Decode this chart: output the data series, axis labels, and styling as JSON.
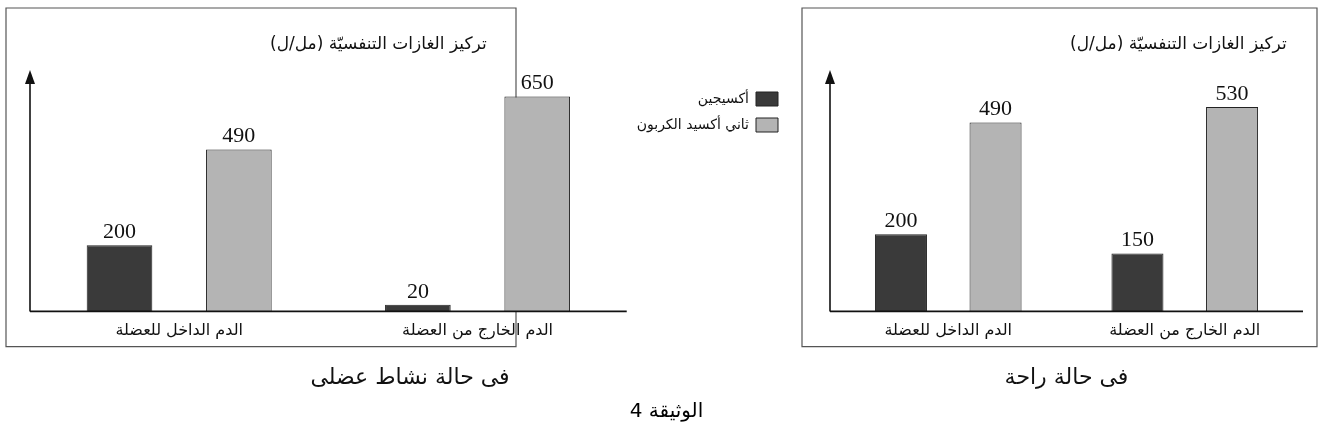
{
  "chart_data": [
    {
      "type": "bar",
      "title": "فى حالة نشاط عضلى",
      "ylabel": "تركيز الغازات التنفسيّة (مل/ل)",
      "categories": [
        "الدم الداخل للعضلة",
        "الدم الخارج من العضلة"
      ],
      "series": [
        {
          "name": "أكسيجين",
          "color": "#3a3a3a",
          "values": [
            200,
            20
          ]
        },
        {
          "name": "ثاني أكسيد الكربون",
          "color": "#b4b4b4",
          "values": [
            490,
            650
          ]
        }
      ],
      "data_labels": true,
      "grid": false,
      "legend": "right",
      "tick_labels": "x",
      "annotations": [
        "الوثيقة 4"
      ]
    },
    {
      "type": "bar",
      "title": "فى حالة راحة",
      "ylabel": "تركيز الغازات التنفسيّة (مل/ل)",
      "categories": [
        "الدم الداخل للعضلة",
        "الدم الخارج من العضلة"
      ],
      "series": [
        {
          "color": "#3a3a3a",
          "values": [
            200,
            150
          ]
        },
        {
          "color": "#b4b4b4",
          "values": [
            490,
            530
          ]
        }
      ],
      "data_labels": true,
      "grid": false,
      "tick_labels": "x"
    }
  ]
}
